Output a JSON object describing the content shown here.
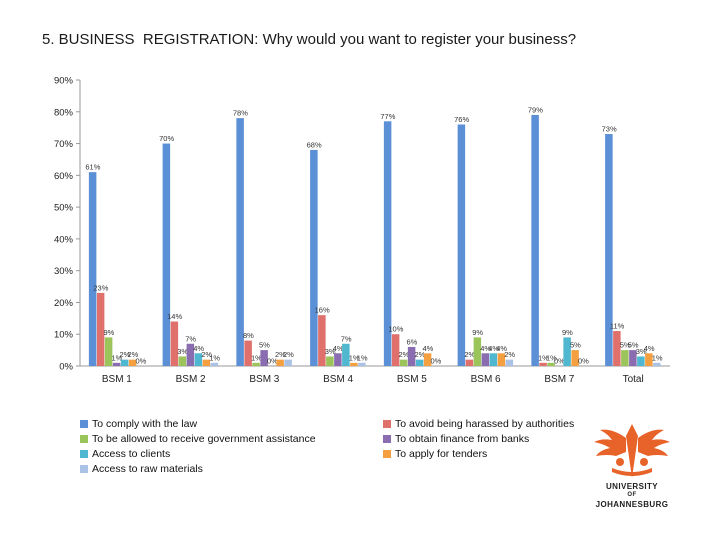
{
  "title": "5. BUSINESS  REGISTRATION: Why would you want to register your business?",
  "chart_data": {
    "type": "bar",
    "categories": [
      "BSM 1",
      "BSM 2",
      "BSM 3",
      "BSM 4",
      "BSM 5",
      "BSM 6",
      "BSM 7",
      "Total"
    ],
    "ylim": [
      0,
      90
    ],
    "yticks": [
      0,
      10,
      20,
      30,
      40,
      50,
      60,
      70,
      80,
      90
    ],
    "ytick_labels": [
      "0%",
      "10%",
      "20%",
      "30%",
      "40%",
      "50%",
      "60%",
      "70%",
      "80%",
      "90%"
    ],
    "legend_position": "bottom",
    "series": [
      {
        "name": "To comply with the law",
        "color": "#5b8fd6",
        "values": [
          61,
          70,
          78,
          68,
          77,
          76,
          79,
          73
        ],
        "labels": [
          "61%",
          "70%",
          "78%",
          "68%",
          "77%",
          "76%",
          "79%",
          "73%"
        ]
      },
      {
        "name": "To avoid being harassed by authorities",
        "color": "#e0706c",
        "values": [
          23,
          14,
          8,
          16,
          10,
          2,
          1,
          11
        ],
        "labels": [
          "23%",
          "14%",
          "8%",
          "16%",
          "10%",
          "2%",
          "1%",
          "11%"
        ]
      },
      {
        "name": "To be allowed to receive government assistance",
        "color": "#9bc45a",
        "values": [
          9,
          3,
          1,
          3,
          2,
          9,
          1,
          5
        ],
        "labels": [
          "9%",
          "3%",
          "1%",
          "3%",
          "2%",
          "9%",
          "1%",
          "5%"
        ]
      },
      {
        "name": "To obtain finance from banks",
        "color": "#8a6cb0",
        "values": [
          1,
          7,
          5,
          4,
          6,
          4,
          0,
          5
        ],
        "labels": [
          "1%",
          "7%",
          "5%",
          "4%",
          "6%",
          "4%",
          "0%",
          "5%"
        ]
      },
      {
        "name": "Access to clients",
        "color": "#4fb7cf",
        "values": [
          2,
          4,
          0,
          7,
          2,
          4,
          9,
          3
        ],
        "labels": [
          "2%",
          "4%",
          "0%",
          "7%",
          "2%",
          "4%",
          "9%",
          "3%"
        ]
      },
      {
        "name": "To apply for tenders",
        "color": "#f4a040",
        "values": [
          2,
          2,
          2,
          1,
          4,
          4,
          5,
          4
        ],
        "labels": [
          "2%",
          "2%",
          "2%",
          "1%",
          "4%",
          "4%",
          "5%",
          "4%"
        ]
      },
      {
        "name": "Access to raw materials",
        "color": "#a9c2e6",
        "values": [
          0,
          1,
          2,
          1,
          0,
          2,
          0,
          1
        ],
        "labels": [
          "0%",
          "1%",
          "2%",
          "1%",
          "0%",
          "2%",
          "0%",
          "1%"
        ]
      }
    ]
  },
  "logo": {
    "line1": "UNIVERSITY",
    "line2": "OF",
    "line3": "JOHANNESBURG",
    "color": "#e8632a"
  }
}
